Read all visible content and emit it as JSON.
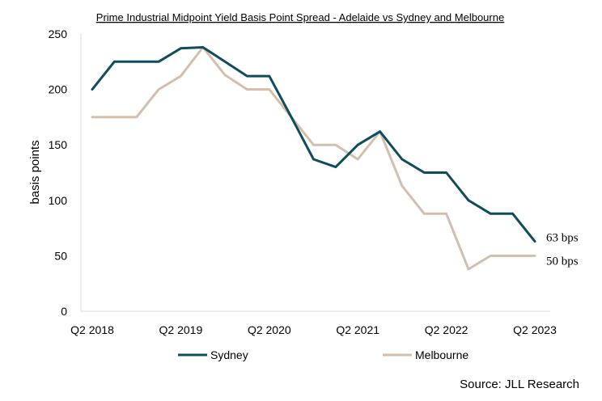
{
  "chart_data": {
    "type": "line",
    "title": "Prime Industrial Midpoint Yield Basis Point Spread - Adelaide vs Sydney and Melbourne",
    "ylabel": "basis points",
    "xlabel": "",
    "ylim": [
      0,
      250
    ],
    "y_ticks": [
      "0",
      "50",
      "100",
      "150",
      "200",
      "250"
    ],
    "x_ticks": [
      {
        "label": "Q2 2018",
        "index": 0
      },
      {
        "label": "Q2 2019",
        "index": 4
      },
      {
        "label": "Q2 2020",
        "index": 8
      },
      {
        "label": "Q2 2021",
        "index": 12
      },
      {
        "label": "Q2 2022",
        "index": 16
      },
      {
        "label": "Q2 2023",
        "index": 20
      }
    ],
    "x": [
      "Q2 2018",
      "Q3 2018",
      "Q4 2018",
      "Q1 2019",
      "Q2 2019",
      "Q3 2019",
      "Q4 2019",
      "Q1 2020",
      "Q2 2020",
      "Q3 2020",
      "Q4 2020",
      "Q1 2021",
      "Q2 2021",
      "Q3 2021",
      "Q4 2021",
      "Q1 2022",
      "Q2 2022",
      "Q3 2022",
      "Q4 2022",
      "Q1 2023",
      "Q2 2023"
    ],
    "series": [
      {
        "name": "Sydney",
        "color": "#0f4c5c",
        "values": [
          200,
          225,
          225,
          225,
          237,
          238,
          225,
          212,
          212,
          175,
          137,
          130,
          150,
          162,
          137,
          125,
          125,
          100,
          88,
          88,
          63
        ],
        "end_label": "63 bps"
      },
      {
        "name": "Melbourne",
        "color": "#d4bfad",
        "values": [
          175,
          175,
          175,
          200,
          212,
          238,
          213,
          200,
          200,
          175,
          150,
          150,
          137,
          162,
          113,
          88,
          88,
          38,
          50,
          50,
          50
        ],
        "end_label": "50 bps"
      }
    ],
    "grid": false,
    "legend_position": "bottom",
    "source": "Source: JLL Research"
  }
}
